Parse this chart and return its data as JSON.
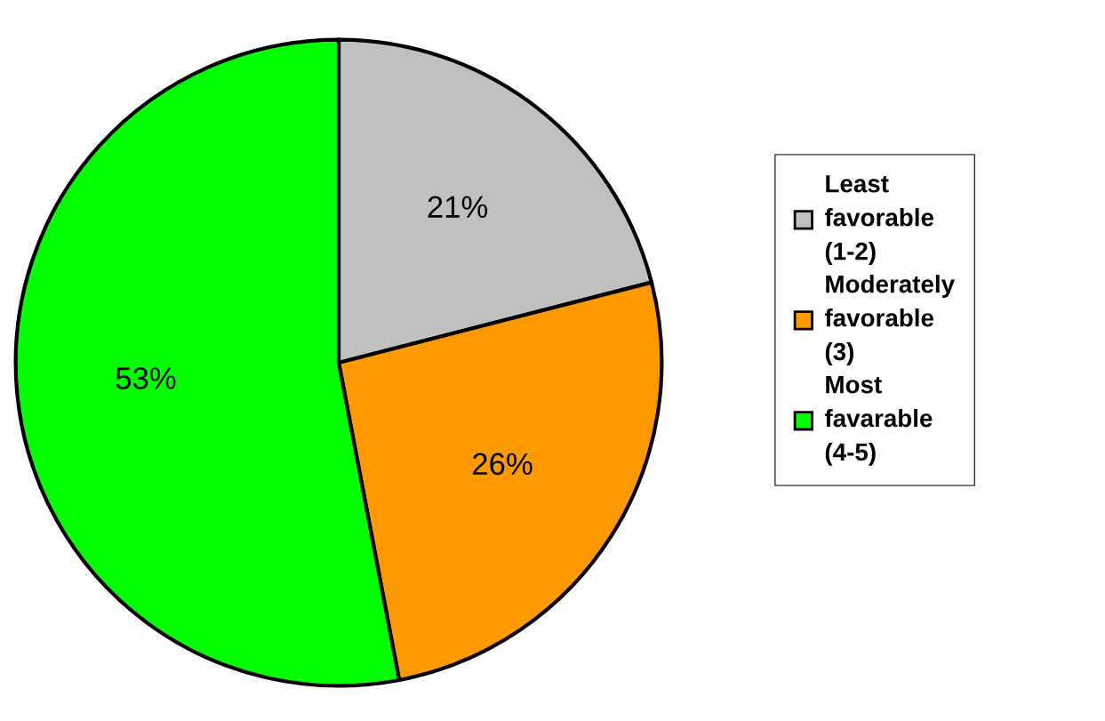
{
  "chart_data": {
    "type": "pie",
    "categories": [
      "Least favorable (1-2)",
      "Moderately favorable (3)",
      "Most favarable (4-5)"
    ],
    "values": [
      21,
      26,
      53
    ],
    "colors": [
      "#c0c0c0",
      "#ff9900",
      "#00ff00"
    ],
    "value_labels": [
      "21%",
      "26%",
      "53%"
    ],
    "legend": "right"
  }
}
